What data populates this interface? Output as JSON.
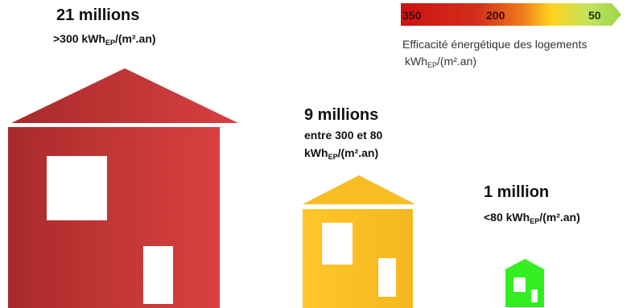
{
  "groups": {
    "high": {
      "count": "21 millions",
      "condition_prefix": ">300 kWh",
      "condition_sub": "EP",
      "condition_suffix": "/(m².an)",
      "color": "#c03535"
    },
    "medium": {
      "count": "9 millions",
      "condition_line1": "entre 300 et 80",
      "condition_prefix": "kWh",
      "condition_sub": "EP",
      "condition_suffix": "/(m².an)",
      "color": "#ffc62a"
    },
    "low": {
      "count": "1 million",
      "condition_prefix": "<80 kWh",
      "condition_sub": "EP",
      "condition_suffix": "/(m².an)",
      "color": "#33ee22"
    }
  },
  "legend": {
    "scale_labels": [
      "350",
      "200",
      "50"
    ],
    "title": "Efficacité énergétique  des logements",
    "unit_prefix": "kWh",
    "unit_sub": "EP",
    "unit_suffix": "/(m².an)",
    "gradient_colors": [
      "#cc1111",
      "#e8621a",
      "#ffd21f",
      "#b8e05a",
      "#9bd64a"
    ]
  }
}
